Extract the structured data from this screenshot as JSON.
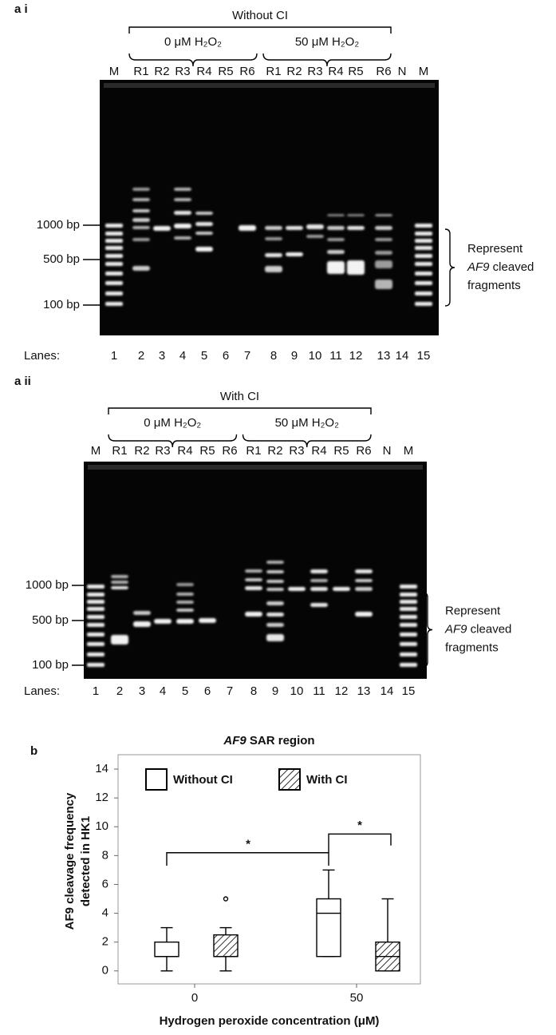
{
  "panel_a_i": {
    "panel_label": "a i",
    "condition": "Without CI",
    "groups": [
      "0 μM H₂O₂",
      "50 μM H₂O₂"
    ],
    "lane_headers": [
      "M",
      "R1",
      "R2",
      "R3",
      "R4",
      "R5",
      "R6",
      "R1",
      "R2",
      "R3",
      "R4",
      "R5",
      "R6",
      "N",
      "M"
    ],
    "markers": [
      "1000 bp",
      "500 bp",
      "100 bp"
    ],
    "annotation": {
      "line1": "Represent",
      "gene": "AF9",
      "line2": " cleaved",
      "line3": "fragments"
    },
    "lanes_label": "Lanes:",
    "lane_numbers": [
      "1",
      "2",
      "3",
      "4",
      "5",
      "6",
      "7",
      "8",
      "9",
      "10",
      "11",
      "12",
      "13",
      "14",
      "15"
    ]
  },
  "panel_a_ii": {
    "panel_label": "a  ii",
    "condition": "With CI",
    "groups": [
      "0 μM H₂O₂",
      "50 μM H₂O₂"
    ],
    "lane_headers": [
      "M",
      "R1",
      "R2",
      "R3",
      "R4",
      "R5",
      "R6",
      "R1",
      "R2",
      "R3",
      "R4",
      "R5",
      "R6",
      "N",
      "M"
    ],
    "markers": [
      "1000 bp",
      "500 bp",
      "100 bp"
    ],
    "annotation": {
      "line1": "Represent",
      "gene": "AF9",
      "line2": " cleaved",
      "line3": "fragments"
    },
    "lanes_label": "Lanes:",
    "lane_numbers": [
      "1",
      "2",
      "3",
      "4",
      "5",
      "6",
      "7",
      "8",
      "9",
      "10",
      "11",
      "12",
      "13",
      "14",
      "15"
    ]
  },
  "chart_data": {
    "type": "box",
    "panel_label": "b",
    "title_italic": "AF9",
    "title": " SAR region",
    "ylabel": [
      "AF9 cleavage frequency",
      "detected in HK1"
    ],
    "xlabel": "Hydrogen peroxide concentration (μM)",
    "categories": [
      "0",
      "50"
    ],
    "series": [
      {
        "name": "Without CI",
        "color": "#000000",
        "hatched": false,
        "values": [
          {
            "min": 0,
            "q1": 1,
            "median": 1,
            "q3": 2,
            "max": 3
          },
          {
            "min": 1,
            "q1": 1,
            "median": 4,
            "q3": 5,
            "max": 7
          }
        ]
      },
      {
        "name": "With CI",
        "color": "#000000",
        "hatched": true,
        "values": [
          {
            "min": 0,
            "q1": 1,
            "median": 1,
            "q3": 2.5,
            "max": 3,
            "outliers": [
              5
            ]
          },
          {
            "min": 0,
            "q1": 0,
            "median": 1,
            "q3": 2,
            "max": 5
          }
        ]
      }
    ],
    "significance": [
      "*",
      "*"
    ],
    "ylim": [
      -0.9,
      15
    ],
    "yticks": [
      0,
      2,
      4,
      6,
      8,
      10,
      12,
      14
    ],
    "grid": false
  }
}
